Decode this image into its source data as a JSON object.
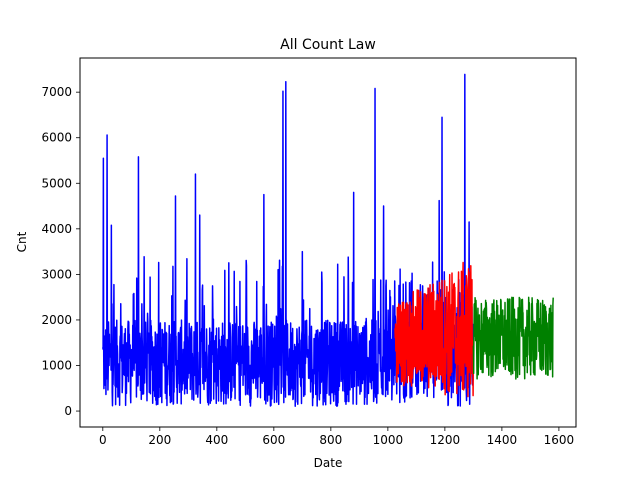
{
  "chart_data": {
    "type": "line",
    "title": "All Count Law",
    "xlabel": "Date",
    "ylabel": "Cnt",
    "xlim": [
      -80,
      1660
    ],
    "ylim": [
      -350,
      7750
    ],
    "xticks": [
      0,
      200,
      400,
      600,
      800,
      1000,
      1200,
      1400,
      1600
    ],
    "yticks": [
      0,
      1000,
      2000,
      3000,
      4000,
      5000,
      6000,
      7000
    ],
    "grid": false,
    "legend": "none",
    "series": [
      {
        "color": "#0000ff",
        "x_range": [
          0,
          1300
        ],
        "approx_baseline": [
          100,
          2000
        ],
        "peaks": [
          {
            "x": 2,
            "y": 5550
          },
          {
            "x": 15,
            "y": 6060
          },
          {
            "x": 30,
            "y": 4080
          },
          {
            "x": 125,
            "y": 5580
          },
          {
            "x": 255,
            "y": 4720
          },
          {
            "x": 325,
            "y": 5200
          },
          {
            "x": 340,
            "y": 4300
          },
          {
            "x": 565,
            "y": 4750
          },
          {
            "x": 632,
            "y": 7020
          },
          {
            "x": 642,
            "y": 7230
          },
          {
            "x": 700,
            "y": 3500
          },
          {
            "x": 880,
            "y": 4800
          },
          {
            "x": 955,
            "y": 7080
          },
          {
            "x": 985,
            "y": 4500
          },
          {
            "x": 1180,
            "y": 4620
          },
          {
            "x": 1190,
            "y": 6450
          },
          {
            "x": 1270,
            "y": 7390
          },
          {
            "x": 1285,
            "y": 4150
          }
        ]
      },
      {
        "color": "#ff0000",
        "x_range": [
          1025,
          1300
        ],
        "approx_range": [
          300,
          3450
        ]
      },
      {
        "color": "#008000",
        "x_range": [
          1300,
          1580
        ],
        "approx_range": [
          0,
          3250
        ]
      }
    ]
  }
}
